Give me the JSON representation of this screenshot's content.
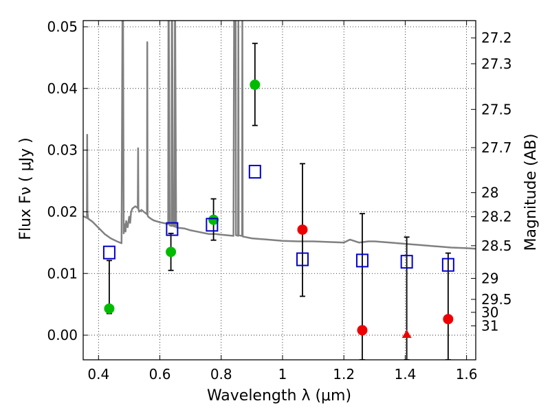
{
  "chart_data": {
    "type": "scatter",
    "title": "",
    "xlabel": "Wavelength  λ (μm)",
    "ylabel": "Flux  Fν  ( μJy )",
    "y2label": "Magnitude (AB)",
    "xlim": [
      0.35,
      1.63
    ],
    "ylim": [
      -0.004,
      0.051
    ],
    "grid": true,
    "x_ticks": [
      0.4,
      0.6,
      0.8,
      1,
      1.2,
      1.4,
      1.6
    ],
    "x_tick_labels": [
      "0.4",
      "0.6",
      "0.8",
      "1",
      "1.2",
      "1.4",
      "1.6"
    ],
    "y_ticks": [
      0.0,
      0.01,
      0.02,
      0.03,
      0.04,
      0.05
    ],
    "y_tick_labels": [
      "0.00",
      "0.01",
      "0.02",
      "0.03",
      "0.04",
      "0.05"
    ],
    "y2_ticks": [
      {
        "label": "27.2",
        "flux": 0.0482
      },
      {
        "label": "27.3",
        "flux": 0.044
      },
      {
        "label": "27.5",
        "flux": 0.0366
      },
      {
        "label": "27.7",
        "flux": 0.0304
      },
      {
        "label": "28",
        "flux": 0.0231
      },
      {
        "label": "28.2",
        "flux": 0.0192
      },
      {
        "label": "28.5",
        "flux": 0.0145
      },
      {
        "label": "29",
        "flux": 0.0092
      },
      {
        "label": "29.5",
        "flux": 0.0058
      },
      {
        "label": "30",
        "flux": 0.0037
      },
      {
        "label": "31",
        "flux": 0.0015
      }
    ],
    "series": [
      {
        "marker": "circle",
        "color": "#00bb00",
        "points": [
          {
            "x": 0.435,
            "y": 0.0043,
            "yerr_low": 0.0035,
            "yerr_high": 0.0121
          },
          {
            "x": 0.636,
            "y": 0.0135,
            "yerr_low": 0.0105,
            "yerr_high": 0.0165
          },
          {
            "x": 0.775,
            "y": 0.0187,
            "yerr_low": 0.0154,
            "yerr_high": 0.0221
          },
          {
            "x": 0.91,
            "y": 0.0406,
            "yerr_low": 0.034,
            "yerr_high": 0.0473
          }
        ]
      },
      {
        "marker": "circle",
        "color": "#ee0000",
        "points": [
          {
            "x": 1.065,
            "y": 0.0171,
            "yerr_low": 0.0063,
            "yerr_high": 0.0278
          },
          {
            "x": 1.26,
            "y": 0.0008,
            "yerr_low": -0.004,
            "yerr_high": 0.0197
          },
          {
            "x": 1.54,
            "y": 0.0026,
            "yerr_low": -0.004,
            "yerr_high": 0.0133
          }
        ]
      },
      {
        "marker": "triangle",
        "color": "#ee0000",
        "points": [
          {
            "x": 1.405,
            "y": 0.0001,
            "yerr_low": -0.004,
            "yerr_high": 0.0159
          }
        ]
      },
      {
        "marker": "open-square",
        "color": "#0000cc",
        "points": [
          {
            "x": 0.435,
            "y": 0.0134
          },
          {
            "x": 0.64,
            "y": 0.0172
          },
          {
            "x": 0.77,
            "y": 0.0179
          },
          {
            "x": 0.91,
            "y": 0.0265
          },
          {
            "x": 1.065,
            "y": 0.0123
          },
          {
            "x": 1.26,
            "y": 0.0121
          },
          {
            "x": 1.405,
            "y": 0.0119
          },
          {
            "x": 1.54,
            "y": 0.0114
          }
        ]
      }
    ],
    "model_spectrum": {
      "color": "#808080",
      "x": [
        0.35,
        0.362,
        0.363,
        0.364,
        0.366,
        0.38,
        0.4,
        0.42,
        0.44,
        0.46,
        0.475,
        0.478,
        0.479,
        0.48,
        0.482,
        0.485,
        0.488,
        0.49,
        0.495,
        0.5,
        0.503,
        0.506,
        0.51,
        0.52,
        0.528,
        0.529,
        0.53,
        0.532,
        0.54,
        0.55,
        0.558,
        0.559,
        0.56,
        0.562,
        0.57,
        0.58,
        0.6,
        0.62,
        0.627,
        0.628,
        0.629,
        0.632,
        0.638,
        0.639,
        0.64,
        0.643,
        0.648,
        0.649,
        0.65,
        0.653,
        0.66,
        0.68,
        0.7,
        0.72,
        0.74,
        0.76,
        0.78,
        0.8,
        0.82,
        0.84,
        0.842,
        0.843,
        0.847,
        0.848,
        0.85,
        0.855,
        0.856,
        0.857,
        0.868,
        0.869,
        0.87,
        0.88,
        0.9,
        0.95,
        1.0,
        1.05,
        1.1,
        1.15,
        1.2,
        1.22,
        1.25,
        1.28,
        1.3,
        1.35,
        1.4,
        1.45,
        1.5,
        1.55,
        1.6,
        1.63
      ],
      "y": [
        0.0193,
        0.019,
        0.0325,
        0.02,
        0.0189,
        0.0184,
        0.0174,
        0.0164,
        0.0157,
        0.0152,
        0.0149,
        0.051,
        0.051,
        0.051,
        0.0165,
        0.018,
        0.0168,
        0.0185,
        0.0175,
        0.0192,
        0.0182,
        0.0199,
        0.0205,
        0.0209,
        0.0206,
        0.0303,
        0.0205,
        0.02,
        0.0203,
        0.0199,
        0.0196,
        0.0475,
        0.0194,
        0.0192,
        0.0189,
        0.0186,
        0.0183,
        0.0181,
        0.018,
        0.051,
        0.051,
        0.0178,
        0.0177,
        0.051,
        0.051,
        0.0177,
        0.0176,
        0.051,
        0.051,
        0.0175,
        0.0174,
        0.0173,
        0.017,
        0.0168,
        0.0166,
        0.0164,
        0.0164,
        0.0163,
        0.0162,
        0.0161,
        0.051,
        0.051,
        0.051,
        0.0162,
        0.0162,
        0.0161,
        0.051,
        0.0162,
        0.0161,
        0.051,
        0.016,
        0.0159,
        0.0157,
        0.0155,
        0.0153,
        0.0152,
        0.0152,
        0.0151,
        0.015,
        0.0155,
        0.015,
        0.0152,
        0.0152,
        0.015,
        0.0148,
        0.0146,
        0.0144,
        0.0142,
        0.0141,
        0.014
      ]
    }
  }
}
